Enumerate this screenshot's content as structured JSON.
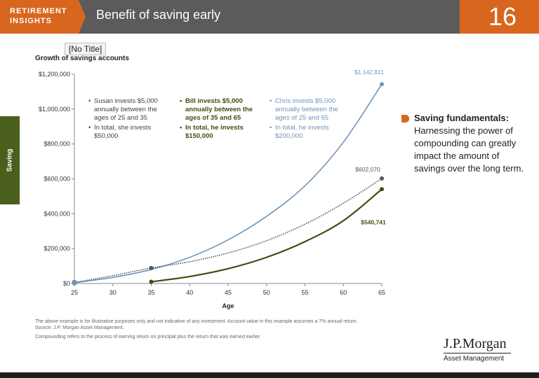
{
  "header": {
    "badge": "RETIREMENT\nINSIGHTS",
    "title": "Benefit of saving early",
    "page_number": "16",
    "colors": {
      "badge": "#d8661f",
      "bar": "#5b5b5b"
    }
  },
  "side_tab": {
    "label": "Saving",
    "color": "#4b5f1c"
  },
  "tooltip": "[No Title]",
  "chart_data": {
    "type": "line",
    "title": "Growth of savings accounts",
    "xlabel": "Age",
    "ylabel": "",
    "xlim": [
      25,
      65
    ],
    "ylim": [
      0,
      1200000
    ],
    "x_ticks": [
      25,
      30,
      35,
      40,
      45,
      50,
      55,
      60,
      65
    ],
    "x_tick_labels": [
      "25",
      "30",
      "35",
      "40",
      "45",
      "50",
      "55",
      "60",
      "65"
    ],
    "y_ticks": [
      0,
      200000,
      400000,
      600000,
      800000,
      1000000,
      1200000
    ],
    "y_tick_labels": [
      "$0",
      "$200,000",
      "$400,000",
      "$600,000",
      "$800,000",
      "$1,000,000",
      "$1,200,000"
    ],
    "grid": false,
    "series": [
      {
        "key": "chris",
        "color": "#6f95ba",
        "x": [
          25,
          30,
          35,
          40,
          45,
          50,
          55,
          60,
          65
        ],
        "y": [
          5000,
          35000,
          80000,
          150000,
          250000,
          385000,
          560000,
          810000,
          1142811
        ],
        "end_label": "$1,142,811"
      },
      {
        "key": "susan",
        "color": "#555555",
        "dotted": true,
        "x": [
          25,
          30,
          35,
          40,
          45,
          50,
          55,
          60,
          65
        ],
        "y": [
          5000,
          45000,
          89000,
          125000,
          175000,
          245000,
          340000,
          460000,
          602070
        ],
        "end_label": "$602,070"
      },
      {
        "key": "bill",
        "color": "#3d4f10",
        "x": [
          35,
          40,
          45,
          50,
          55,
          60,
          65
        ],
        "y": [
          10000,
          40000,
          85000,
          150000,
          240000,
          360000,
          540741
        ],
        "end_label": "$540,741"
      }
    ],
    "annotations": {
      "susan": [
        "Susan invests $5,000 annually between the ages of 25 and 35",
        "In total, she invests $50,000"
      ],
      "bill": [
        "Bill invests $5,000 annually between the ages of 35 and 65",
        "In total, he invests $150,000"
      ],
      "chris": [
        "Chris invests $5,000 annually between the ages of 25 and 65",
        "In total, he invests $200,000"
      ]
    }
  },
  "fundamentals": {
    "title": "Saving fundamentals:",
    "body": "Harnessing the power of compounding can greatly impact the amount of savings over the long term."
  },
  "footnotes": [
    "The above example is for illustrative purposes only and not indicative of any investment. Account value in this example assumes a 7% annual return.",
    "Source: J.P. Morgan Asset Management.",
    "Compounding refers to the process of earning return on principal plus the return that was earned earlier."
  ],
  "logo": {
    "main": "J.P.Morgan",
    "sub": "Asset Management"
  }
}
